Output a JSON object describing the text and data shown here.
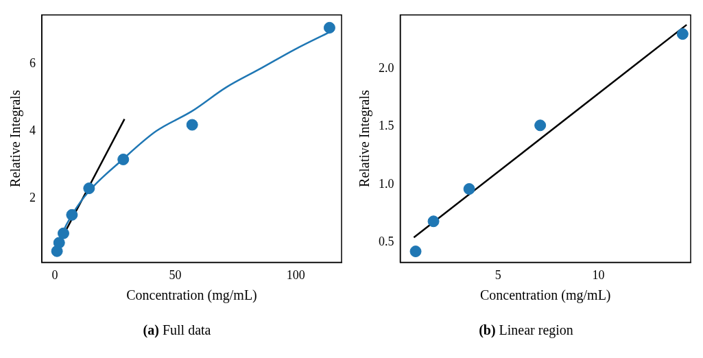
{
  "chart_data": [
    {
      "type": "scatter",
      "title": "(a) Full data",
      "xlabel": "Concentration (mg/mL)",
      "ylabel": "Relative Integrals",
      "xlim": [
        -5.4,
        119
      ],
      "ylim": [
        0.1,
        7.46
      ],
      "xticks": [
        0,
        50,
        100
      ],
      "yticks": [
        2,
        4,
        6
      ],
      "grid": false,
      "legend": false,
      "marker": "circle",
      "series": [
        {
          "color": "#1f77b4",
          "x": [
            0.89,
            1.78,
            3.56,
            7.1,
            14.2,
            28.4,
            57,
            114
          ],
          "values": [
            0.43,
            0.68,
            0.96,
            1.51,
            2.3,
            3.16,
            4.19,
            7.08
          ]
        },
        {
          "type": "line",
          "color": "#1f77b4",
          "marker": "none",
          "x": [
            0.9,
            3,
            7,
            14,
            28,
            42,
            57,
            71,
            85,
            100,
            114
          ],
          "values": [
            0.55,
            0.95,
            1.5,
            2.2,
            3.15,
            4.0,
            4.6,
            5.3,
            5.85,
            6.45,
            6.95
          ]
        },
        {
          "type": "line",
          "color": "#000000",
          "marker": "none",
          "x": [
            1,
            28.9
          ],
          "values": [
            0.56,
            4.36
          ]
        }
      ]
    },
    {
      "type": "scatter",
      "title": "(b) Linear region",
      "xlabel": "Concentration (mg/mL)",
      "ylabel": "Relative Integrals",
      "xlim": [
        0.12,
        14.6
      ],
      "ylim": [
        0.326,
        2.465
      ],
      "xticks": [
        5,
        10
      ],
      "yticks": [
        {
          "value": 0.5,
          "label": "0.5"
        },
        {
          "value": 1,
          "label": "1.0"
        },
        {
          "value": 1.5,
          "label": "1.5"
        },
        {
          "value": 2,
          "label": "2.0"
        }
      ],
      "grid": false,
      "legend": false,
      "marker": "circle",
      "series": [
        {
          "color": "#1f77b4",
          "x": [
            0.89,
            1.78,
            3.56,
            7.1,
            14.2
          ],
          "values": [
            0.42,
            0.68,
            0.96,
            1.51,
            2.3
          ]
        },
        {
          "type": "line",
          "color": "#000000",
          "marker": "none",
          "x": [
            0.8,
            14.4
          ],
          "values": [
            0.54,
            2.38
          ]
        }
      ]
    }
  ]
}
